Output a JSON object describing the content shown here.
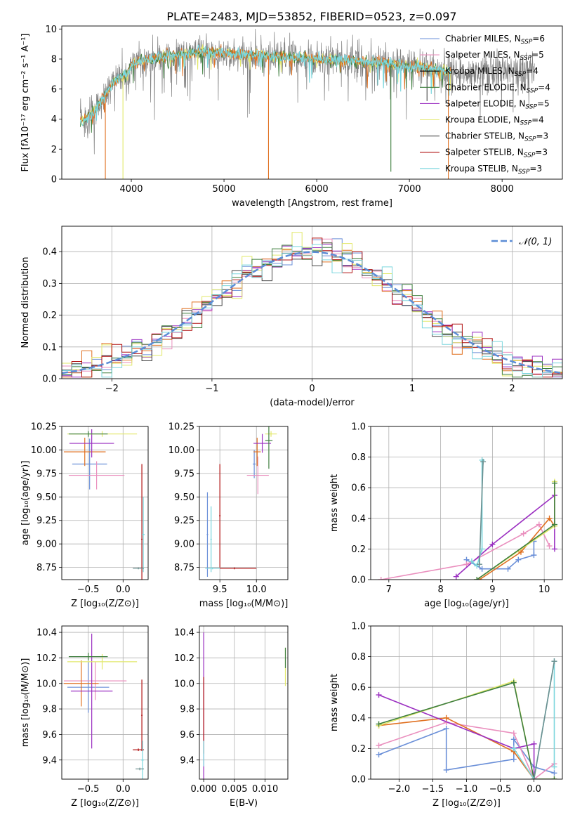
{
  "figure_title": "PLATE=2483, MJD=53852, FIBERID=0523, z=0.097",
  "colors": {
    "chabrier_miles": "#6a8fd8",
    "salpeter_miles": "#ea8fbe",
    "kroupa_miles": "#000000",
    "chabrier_elodie": "#3f7f3f",
    "salpeter_elodie": "#9b2fc1",
    "kroupa_elodie": "#e2e86a",
    "chabrier_stelib": "#444444",
    "salpeter_stelib": "#b01010",
    "kroupa_stelib": "#7ad6dd",
    "orange": "#e07020",
    "gray_spectrum": "#808080",
    "grid": "#b0b0b0"
  },
  "chart_data": [
    {
      "id": "spectrum",
      "type": "line",
      "xlabel": "wavelength [Angstrom, rest frame]",
      "ylabel": "Flux [fλ10⁻¹⁷ erg cm⁻² s⁻¹ A⁻¹]",
      "xlim": [
        3250,
        8650
      ],
      "ylim": [
        0,
        10.2
      ],
      "xticks": [
        "4000",
        "5000",
        "6000",
        "7000",
        "8000"
      ],
      "yticks": [
        "0",
        "2",
        "4",
        "6",
        "8",
        "10"
      ],
      "grid": false,
      "legend_position": "right",
      "legend": [
        {
          "label": "Chabrier MILES, N",
          "sub": "SSP",
          "suffix": "=6",
          "color": "#6a8fd8"
        },
        {
          "label": "Salpeter MILES, N",
          "sub": "SSP",
          "suffix": "=5",
          "color": "#ea8fbe"
        },
        {
          "label": "Kroupa MILES, N",
          "sub": "SSP",
          "suffix": "=4",
          "color": "#000000"
        },
        {
          "label": "Chabrier ELODIE, N",
          "sub": "SSP",
          "suffix": "=4",
          "color": "#3f7f3f"
        },
        {
          "label": "Salpeter ELODIE, N",
          "sub": "SSP",
          "suffix": "=5",
          "color": "#9b2fc1"
        },
        {
          "label": "Kroupa ELODIE, N",
          "sub": "SSP",
          "suffix": "=4",
          "color": "#e2e86a"
        },
        {
          "label": "Chabrier STELIB, N",
          "sub": "SSP",
          "suffix": "=3",
          "color": "#444444"
        },
        {
          "label": "Salpeter STELIB, N",
          "sub": "SSP",
          "suffix": "=3",
          "color": "#b01010"
        },
        {
          "label": "Kroupa STELIB, N",
          "sub": "SSP",
          "suffix": "=3",
          "color": "#7ad6dd"
        }
      ],
      "continuum": {
        "x": [
          3450,
          3600,
          3700,
          3800,
          3900,
          3960,
          4000,
          4100,
          4300,
          4500,
          4800,
          5000,
          5200,
          5500,
          5800,
          6000,
          6300,
          6600,
          6800,
          7000,
          7200,
          7400,
          7500
        ],
        "y": [
          3.8,
          4.5,
          5.4,
          6.4,
          6.8,
          7.0,
          7.6,
          7.9,
          8.1,
          8.3,
          8.5,
          8.4,
          8.3,
          8.2,
          8.1,
          8.0,
          7.9,
          7.8,
          7.7,
          7.5,
          7.4,
          7.2,
          7.2
        ]
      },
      "gray_spectrum_x_range": [
        3450,
        8350
      ],
      "orange_model_x_range": [
        3450,
        7450
      ],
      "orange_spikes_x": [
        3720,
        5480,
        7420
      ],
      "other_spikes": [
        {
          "x": 3910,
          "y": 0.0,
          "color": "#e2e86a"
        },
        {
          "x": 6800,
          "y": 0.5,
          "color": "#3f7f3f"
        },
        {
          "x": 7190,
          "y": 5.2,
          "color": "#444444"
        }
      ]
    },
    {
      "id": "residual_histogram",
      "type": "step-histogram",
      "xlabel": "(data-model)/error",
      "ylabel": "Normed distribution",
      "xlim": [
        -2.5,
        2.5
      ],
      "ylim": [
        0,
        0.48
      ],
      "xticks": [
        "−2",
        "−1",
        "0",
        "1",
        "2"
      ],
      "yticks": [
        "0.0",
        "0.1",
        "0.2",
        "0.3",
        "0.4"
      ],
      "grid": true,
      "legend_label": "𝒩(0, 1)",
      "legend_position": "top-right",
      "bin_width": 0.1,
      "n_bins": 50,
      "bin_start": -2.5
    },
    {
      "id": "age_vs_Z",
      "type": "errorbar",
      "xlabel": "Z [log₁₀(Z/Z⊙)]",
      "ylabel": "age  [log₁₀(age/yr)]",
      "xlim": [
        -0.88,
        0.36
      ],
      "ylim": [
        8.62,
        10.25
      ],
      "xticks": [
        "−0.5",
        "0.0"
      ],
      "yticks": [
        "8.75",
        "9.00",
        "9.25",
        "9.50",
        "9.75",
        "10.00",
        "10.25"
      ],
      "grid": true,
      "points": [
        {
          "x": -0.48,
          "y": 9.85,
          "xerr": 0.25,
          "yerr": 0.27,
          "color": "#6a8fd8"
        },
        {
          "x": -0.38,
          "y": 9.73,
          "xerr": 0.4,
          "yerr": 0.15,
          "color": "#ea8fbe"
        },
        {
          "x": -0.55,
          "y": 9.98,
          "xerr": 0.3,
          "yerr": 0.15,
          "color": "#e07020"
        },
        {
          "x": -0.45,
          "y": 10.07,
          "xerr": 0.32,
          "yerr": 0.15,
          "color": "#9b2fc1"
        },
        {
          "x": -0.3,
          "y": 10.17,
          "xerr": 0.5,
          "yerr": 0.03,
          "color": "#e2e86a"
        },
        {
          "x": -0.5,
          "y": 10.17,
          "xerr": 0.28,
          "yerr": 0.03,
          "color": "#3f7f3f"
        },
        {
          "x": 0.27,
          "y": 9.05,
          "xerr": 0.01,
          "yerr": 0.8,
          "color": "#b01010"
        },
        {
          "x": 0.29,
          "y": 9.1,
          "xerr": 0.02,
          "yerr": 0.4,
          "color": "#7ad6dd"
        },
        {
          "x": 0.22,
          "y": 8.74,
          "xerr": 0.08,
          "yerr": 0.01,
          "color": "#6b8f8f"
        }
      ]
    },
    {
      "id": "age_vs_mass",
      "type": "errorbar",
      "xlabel": "mass [log₁₀(M/M⊙)]",
      "ylabel": "",
      "xlim": [
        9.22,
        10.43
      ],
      "ylim": [
        8.62,
        10.25
      ],
      "xticks": [
        "9.5",
        "10.0"
      ],
      "yticks": [
        "8.75",
        "9.00",
        "9.25",
        "9.50",
        "9.75",
        "10.00",
        "10.25"
      ],
      "grid": true,
      "points": [
        {
          "x": 9.97,
          "y": 9.85,
          "xerr": 0.02,
          "yerr": 0.15,
          "color": "#6a8fd8"
        },
        {
          "x": 10.02,
          "y": 9.73,
          "xerr": 0.15,
          "yerr": 0.2,
          "color": "#ea8fbe"
        },
        {
          "x": 10.01,
          "y": 9.98,
          "xerr": 0.05,
          "yerr": 0.15,
          "color": "#e07020"
        },
        {
          "x": 10.08,
          "y": 10.07,
          "xerr": 0.12,
          "yerr": 0.1,
          "color": "#9b2fc1"
        },
        {
          "x": 10.2,
          "y": 10.17,
          "xerr": 0.08,
          "yerr": 0.03,
          "color": "#e2e86a"
        },
        {
          "x": 10.17,
          "y": 10.1,
          "xerr": 0.05,
          "yerr": 0.3,
          "color": "#3f7f3f"
        },
        {
          "x": 9.7,
          "y": 8.74,
          "xerr": 0.3,
          "yerr": 0.01,
          "color": "#b01010"
        },
        {
          "x": 9.5,
          "y": 9.3,
          "xerr": 0.01,
          "yerr": 0.55,
          "color": "#b01010"
        },
        {
          "x": 9.38,
          "y": 9.05,
          "xerr": 0.01,
          "yerr": 0.35,
          "color": "#7ad6dd"
        },
        {
          "x": 9.33,
          "y": 9.1,
          "xerr": 0.01,
          "yerr": 0.45,
          "color": "#6a8fd8"
        },
        {
          "x": 9.4,
          "y": 8.74,
          "xerr": 0.1,
          "yerr": 0.01,
          "color": "#7ad6dd"
        }
      ]
    },
    {
      "id": "weight_vs_age",
      "type": "line",
      "xlabel": "age  [log₁₀(age/yr)]",
      "ylabel": "mass weight",
      "xlim": [
        6.65,
        10.35
      ],
      "ylim": [
        0,
        1.0
      ],
      "xticks": [
        "7",
        "8",
        "9",
        "10"
      ],
      "yticks": [
        "0.0",
        "0.2",
        "0.4",
        "0.6",
        "0.8",
        "1.0"
      ],
      "grid": true,
      "series": [
        {
          "color": "#6a8fd8",
          "x": [
            8.5,
            8.8,
            9.3,
            9.5,
            9.8,
            9.8
          ],
          "y": [
            0.13,
            0.07,
            0.07,
            0.13,
            0.16,
            0.25
          ]
        },
        {
          "color": "#ea8fbe",
          "x": [
            6.85,
            8.5,
            9.6,
            9.9,
            10.1
          ],
          "y": [
            0.0,
            0.1,
            0.3,
            0.36,
            0.22
          ]
        },
        {
          "color": "#e07020",
          "x": [
            8.75,
            9.55,
            10.1,
            10.2
          ],
          "y": [
            0.0,
            0.18,
            0.4,
            0.35
          ]
        },
        {
          "color": "#9b2fc1",
          "x": [
            8.3,
            9.0,
            10.2,
            10.2
          ],
          "y": [
            0.02,
            0.23,
            0.55,
            0.2
          ]
        },
        {
          "color": "#e2e86a",
          "x": [
            8.7,
            10.2,
            10.2
          ],
          "y": [
            0.0,
            0.35,
            0.64
          ]
        },
        {
          "color": "#3f7f3f",
          "x": [
            8.7,
            10.2,
            10.2
          ],
          "y": [
            0.0,
            0.36,
            0.63
          ]
        },
        {
          "color": "#7ad6dd",
          "x": [
            8.6,
            8.7,
            8.8,
            8.8
          ],
          "y": [
            0.12,
            0.09,
            0.2,
            0.78
          ]
        },
        {
          "color": "#6b8f8f",
          "x": [
            8.75,
            8.82
          ],
          "y": [
            0.1,
            0.77
          ]
        }
      ]
    },
    {
      "id": "mass_vs_Z",
      "type": "errorbar",
      "xlabel": "Z [log₁₀(Z/Z⊙)]",
      "ylabel": "mass [log₁₀(M/M⊙)]",
      "xlim": [
        -0.88,
        0.36
      ],
      "ylim": [
        9.25,
        10.45
      ],
      "xticks": [
        "−0.5",
        "0.0"
      ],
      "yticks": [
        "9.4",
        "9.6",
        "9.8",
        "10.0",
        "10.2",
        "10.4"
      ],
      "grid": true,
      "points": [
        {
          "x": -0.5,
          "y": 9.97,
          "xerr": 0.3,
          "yerr": 0.2,
          "color": "#6a8fd8"
        },
        {
          "x": -0.4,
          "y": 10.02,
          "xerr": 0.45,
          "yerr": 0.15,
          "color": "#ea8fbe"
        },
        {
          "x": -0.6,
          "y": 10.0,
          "xerr": 0.25,
          "yerr": 0.18,
          "color": "#e07020"
        },
        {
          "x": -0.45,
          "y": 9.94,
          "xerr": 0.3,
          "yerr": 0.45,
          "color": "#9b2fc1"
        },
        {
          "x": -0.3,
          "y": 10.17,
          "xerr": 0.5,
          "yerr": 0.06,
          "color": "#e2e86a"
        },
        {
          "x": -0.5,
          "y": 10.21,
          "xerr": 0.28,
          "yerr": 0.03,
          "color": "#3f7f3f"
        },
        {
          "x": 0.27,
          "y": 9.75,
          "xerr": 0.01,
          "yerr": 0.28,
          "color": "#b01010"
        },
        {
          "x": 0.22,
          "y": 9.48,
          "xerr": 0.08,
          "yerr": 0.01,
          "color": "#b01010"
        },
        {
          "x": 0.28,
          "y": 9.4,
          "xerr": 0.02,
          "yerr": 0.15,
          "color": "#7ad6dd"
        },
        {
          "x": 0.24,
          "y": 9.33,
          "xerr": 0.06,
          "yerr": 0.01,
          "color": "#6b8f8f"
        }
      ]
    },
    {
      "id": "mass_vs_ebv",
      "type": "errorbar",
      "xlabel": "E(B-V)",
      "ylabel": "",
      "xlim": [
        -0.0007,
        0.0137
      ],
      "ylim": [
        9.25,
        10.45
      ],
      "xticks": [
        "0.000",
        "0.005",
        "0.010"
      ],
      "yticks": [
        "9.4",
        "9.6",
        "9.8",
        "10.0",
        "10.2",
        "10.4"
      ],
      "grid": true,
      "points": [
        {
          "x": 0.0,
          "y": 9.8,
          "xerr": 0,
          "yerr": 0.6,
          "color": "#9b2fc1"
        },
        {
          "x": 0.0,
          "y": 9.75,
          "xerr": 0,
          "yerr": 0.3,
          "color": "#b01010"
        },
        {
          "x": 0.0,
          "y": 9.45,
          "xerr": 0,
          "yerr": 0.1,
          "color": "#7ad6dd"
        },
        {
          "x": 0.0133,
          "y": 10.13,
          "xerr": 0,
          "yerr": 0.15,
          "color": "#e2e86a"
        },
        {
          "x": 0.0133,
          "y": 10.2,
          "xerr": 0,
          "yerr": 0.08,
          "color": "#3f7f3f"
        }
      ]
    },
    {
      "id": "weight_vs_Z",
      "type": "line",
      "xlabel": "Z [log₁₀(Z/Z⊙)]",
      "ylabel": "mass weight",
      "xlim": [
        -2.42,
        0.42
      ],
      "ylim": [
        0,
        1.0
      ],
      "xticks": [
        "−2.0",
        "−1.5",
        "−1.0",
        "−0.5",
        "0.0"
      ],
      "yticks": [
        "0.0",
        "0.2",
        "0.4",
        "0.6",
        "0.8",
        "1.0"
      ],
      "grid": true,
      "series": [
        {
          "color": "#6a8fd8",
          "x": [
            -2.3,
            -1.3,
            -1.3,
            -0.3,
            -0.3,
            0.0,
            0.3
          ],
          "y": [
            0.16,
            0.33,
            0.06,
            0.13,
            0.26,
            0.08,
            0.04
          ]
        },
        {
          "color": "#ea8fbe",
          "x": [
            -2.3,
            -1.3,
            -0.3,
            0.0,
            0.3
          ],
          "y": [
            0.22,
            0.37,
            0.3,
            0.0,
            0.1
          ]
        },
        {
          "color": "#e07020",
          "x": [
            -2.3,
            -1.3,
            -0.3,
            0.0
          ],
          "y": [
            0.35,
            0.4,
            0.18,
            0.0
          ]
        },
        {
          "color": "#9b2fc1",
          "x": [
            -2.3,
            -0.3,
            0.0,
            0.0
          ],
          "y": [
            0.55,
            0.2,
            0.23,
            0.0
          ]
        },
        {
          "color": "#e2e86a",
          "x": [
            -2.3,
            -0.3,
            0.0,
            0.3
          ],
          "y": [
            0.35,
            0.64,
            0.0,
            0.0
          ]
        },
        {
          "color": "#3f7f3f",
          "x": [
            -2.3,
            -0.3,
            0.0,
            0.3
          ],
          "y": [
            0.36,
            0.63,
            0.0,
            0.0
          ]
        },
        {
          "color": "#7ad6dd",
          "x": [
            -0.3,
            0.0,
            0.3,
            0.3
          ],
          "y": [
            0.2,
            0.0,
            0.77,
            0.08
          ]
        },
        {
          "color": "#6b8f8f",
          "x": [
            0.0,
            0.3
          ],
          "y": [
            0.0,
            0.77
          ]
        }
      ]
    }
  ]
}
